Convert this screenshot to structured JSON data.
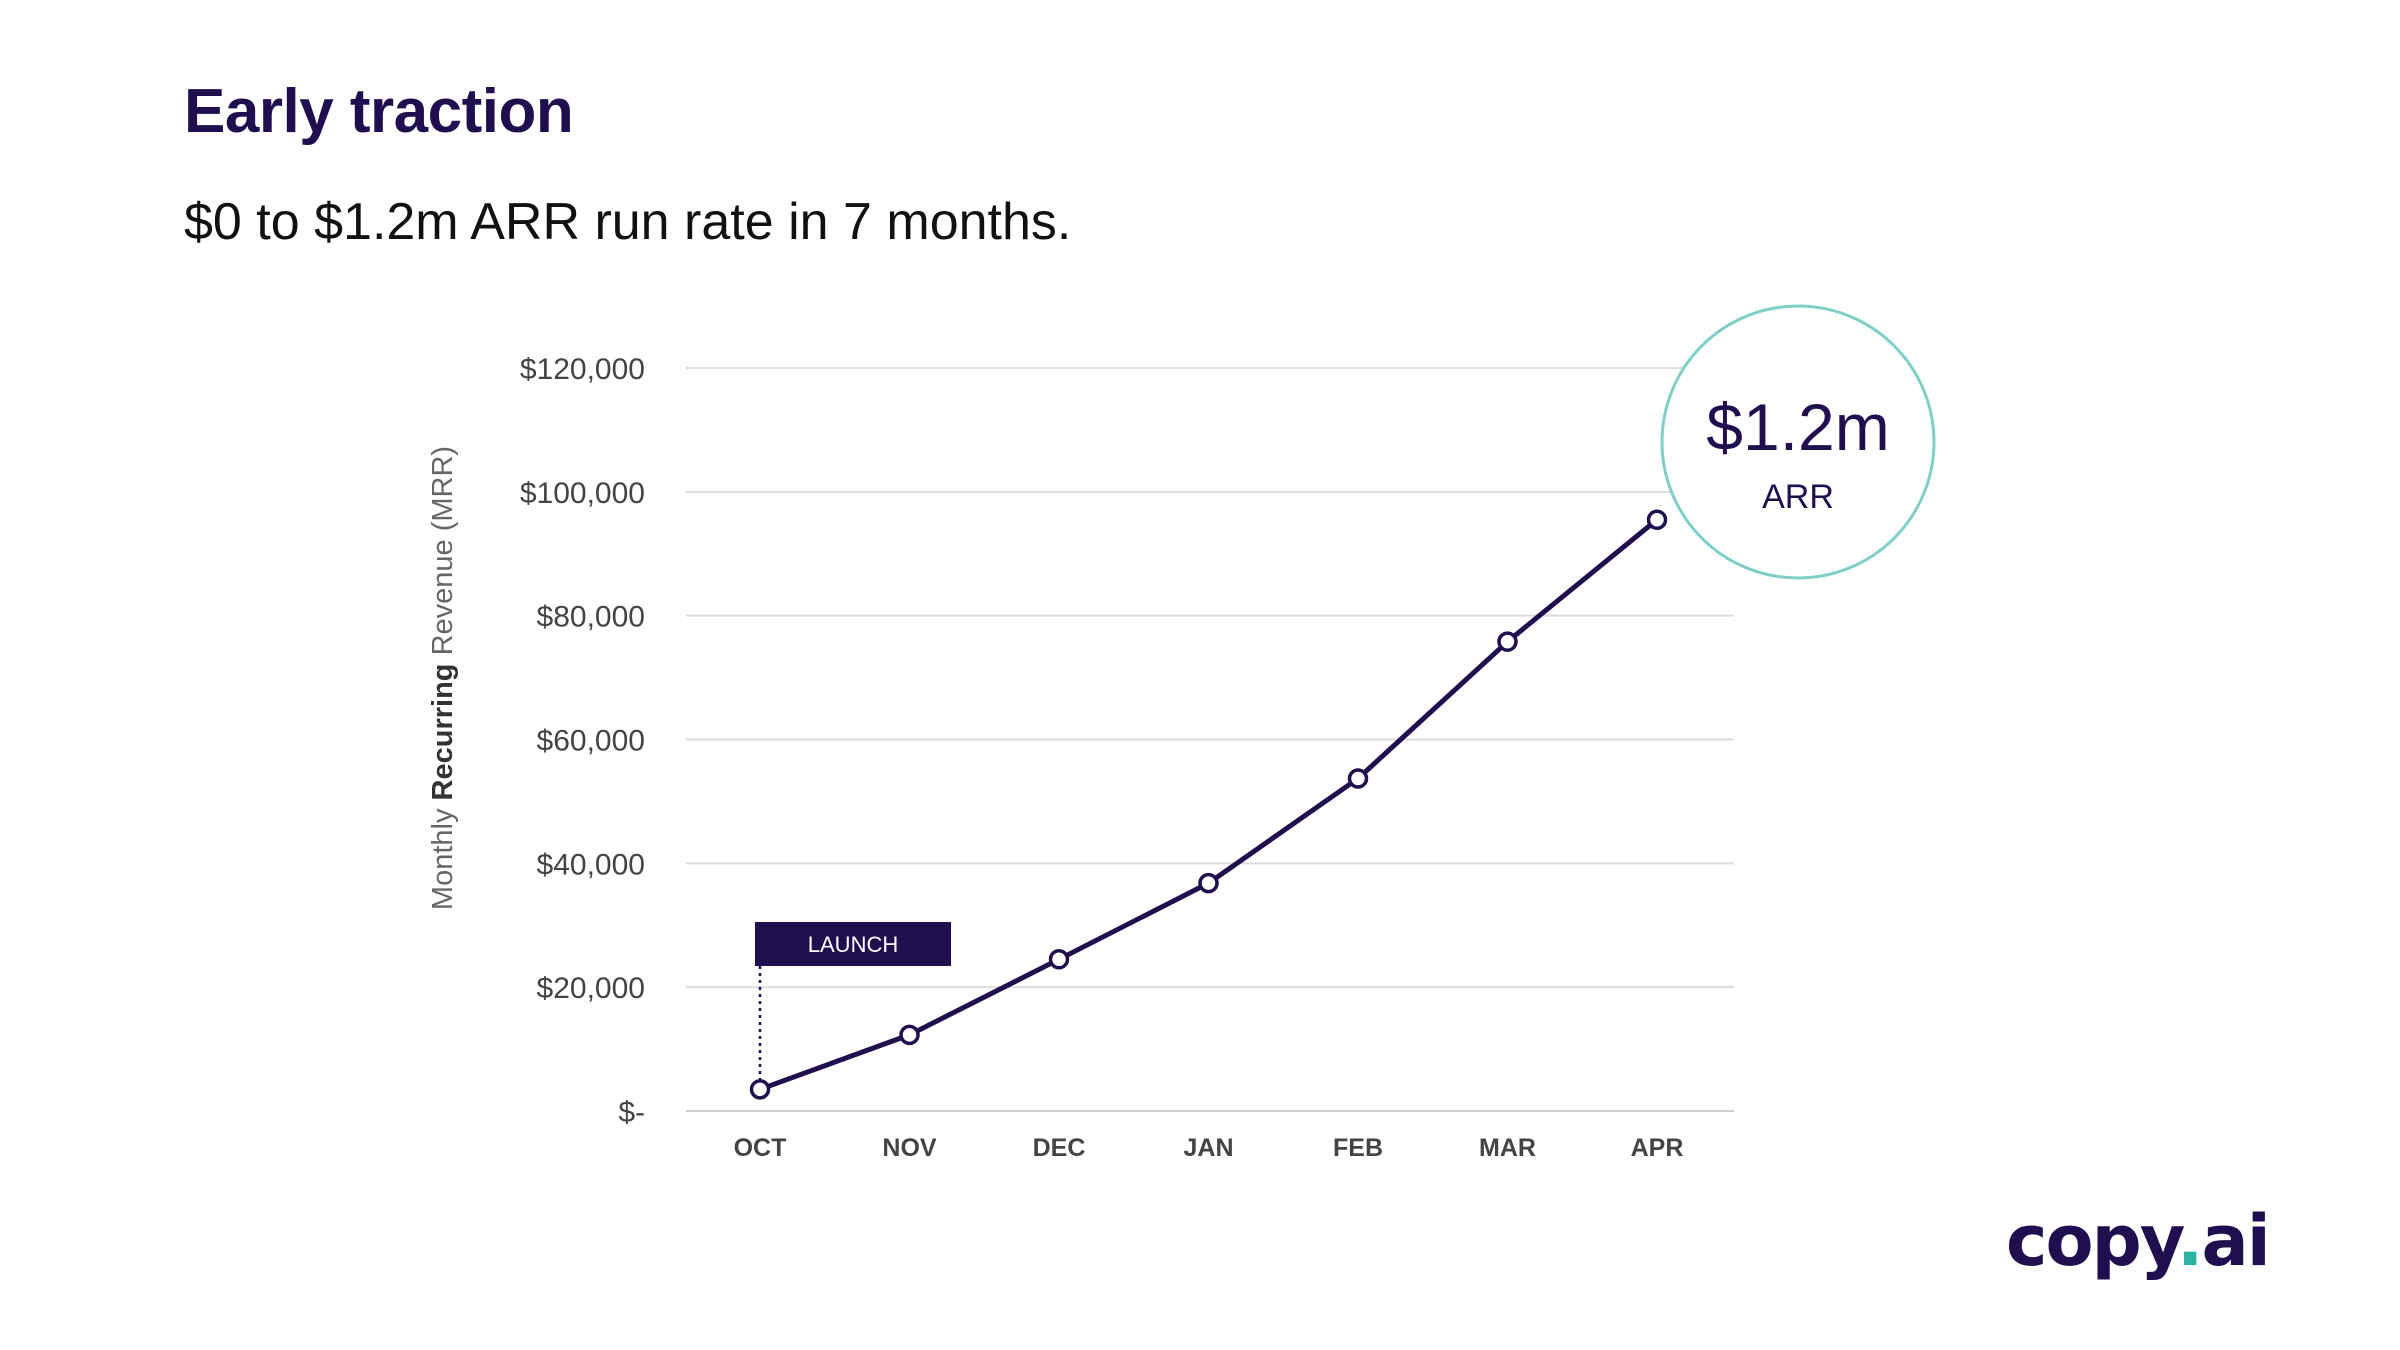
{
  "slide": {
    "title": "Early traction",
    "subtitle": "$0 to $1.2m ARR run rate in 7 months."
  },
  "logo": {
    "name_part": "copy",
    "dot": ".",
    "suffix": "ai"
  },
  "colors": {
    "primary": "#1f0f4f",
    "accent": "#2bb3a5",
    "circle_border": "#7fcfc6",
    "grid": "#dddddd"
  },
  "chart_data": {
    "type": "line",
    "ylabel_light": "Monthly ",
    "ylabel_bold": "Recurring",
    "ylabel_rest": " Revenue (MRR)",
    "categories": [
      "OCT",
      "NOV",
      "DEC",
      "JAN",
      "FEB",
      "MAR",
      "APR"
    ],
    "values": [
      3500,
      12300,
      24500,
      36800,
      53700,
      75800,
      95500
    ],
    "ylim": [
      0,
      120000
    ],
    "yticks": [
      0,
      20000,
      40000,
      60000,
      80000,
      100000,
      120000
    ],
    "ytick_labels": [
      "$-",
      "$20,000",
      "$40,000",
      "$60,000",
      "$80,000",
      "$100,000",
      "$120,000"
    ],
    "grid": true,
    "annotation": {
      "label": "LAUNCH",
      "category": "OCT"
    },
    "callout": {
      "value": "$1.2m",
      "label": "ARR"
    }
  }
}
